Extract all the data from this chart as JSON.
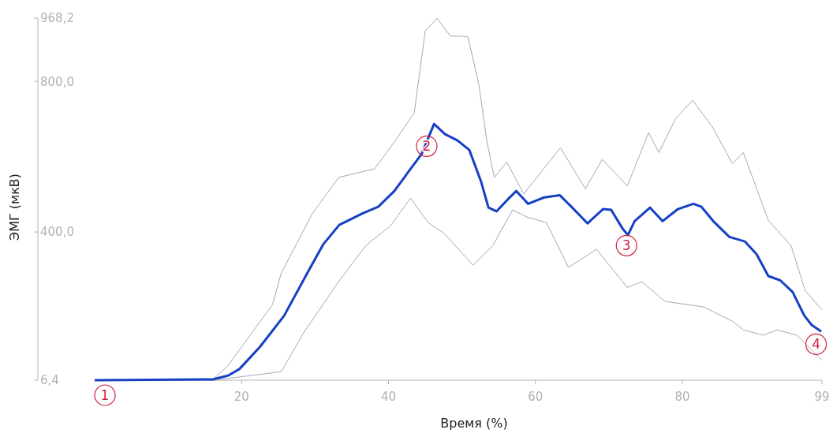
{
  "chart_data": {
    "type": "line",
    "xlabel": "Время (%)",
    "ylabel": "ЭМГ (мкВ)",
    "xlim": [
      0,
      99
    ],
    "xticks": [
      20,
      40,
      60,
      80,
      99
    ],
    "ylim": [
      6.4,
      968.2
    ],
    "yticks": [
      {
        "value": 6.4,
        "label": "6,4"
      },
      {
        "value": 400,
        "label": "400,0"
      },
      {
        "value": 800,
        "label": "800,0"
      },
      {
        "value": 968.2,
        "label": "968,2"
      }
    ],
    "grid": false,
    "marker": "none",
    "line_style": "solid",
    "series": [
      {
        "color": "#a3a6bb",
        "x": [
          0,
          16.1,
          18.1,
          24.2,
          25.4,
          29.6,
          33.2,
          38.1,
          40.3,
          43.5,
          45.0,
          46.6,
          48.4,
          50.8,
          52.3,
          53.4,
          54.4,
          56.1,
          58.4,
          63.4,
          66.8,
          69.1,
          72.5,
          75.4,
          76.8,
          79.1,
          81.4,
          84.1,
          86.8,
          88.3,
          91.7,
          94.8,
          96.7,
          99.0
        ],
        "values": [
          6.4,
          8.5,
          44,
          207,
          291,
          448,
          545,
          568,
          626,
          716,
          934,
          968,
          921,
          919,
          792,
          641,
          545,
          586,
          501,
          624,
          515,
          593,
          522,
          664,
          611,
          702,
          750,
          679,
          582,
          611,
          431,
          364,
          245,
          193
        ]
      },
      {
        "color": "#a3a6bb",
        "x": [
          0,
          16.1,
          18.9,
          25.4,
          28.5,
          33.2,
          36.9,
          40.3,
          43.0,
          45.4,
          47.6,
          51.5,
          54.2,
          56.9,
          58.8,
          61.5,
          64.5,
          68.3,
          72.5,
          74.5,
          77.6,
          82.9,
          86.8,
          88.3,
          91.0,
          92.9,
          95.6,
          99.0
        ],
        "values": [
          6.4,
          6.4,
          13,
          29,
          134,
          268,
          364,
          417,
          490,
          425,
          396,
          312,
          364,
          459,
          440,
          425,
          306,
          354,
          253,
          268,
          216,
          201,
          163,
          140,
          126,
          140,
          126,
          59
        ]
      },
      {
        "color": "#1540c4",
        "x": [
          0,
          16.1,
          18.2,
          19.7,
          22.5,
          25.8,
          29.0,
          31.1,
          33.3,
          36.5,
          38.6,
          40.8,
          42.9,
          44.5,
          46.2,
          47.7,
          49.4,
          51.0,
          52.6,
          53.6,
          54.7,
          56.3,
          57.4,
          59.0,
          61.2,
          63.3,
          64.9,
          67.1,
          69.2,
          70.3,
          71.9,
          72.6,
          73.5,
          75.6,
          77.3,
          79.4,
          81.5,
          82.6,
          84.2,
          86.4,
          88.5,
          90.1,
          91.7,
          93.3,
          95.0,
          96.6,
          97.6,
          98.9
        ],
        "values": [
          6.4,
          8.5,
          19,
          36,
          95,
          178,
          293,
          367,
          419,
          450,
          467,
          509,
          565,
          607,
          687,
          660,
          643,
          618,
          534,
          465,
          455,
          488,
          509,
          475,
          492,
          498,
          467,
          423,
          461,
          459,
          408,
          392,
          429,
          465,
          429,
          461,
          475,
          467,
          429,
          387,
          375,
          341,
          283,
          272,
          241,
          178,
          153,
          136
        ]
      }
    ],
    "annotations": [
      {
        "text": "1",
        "x": 1.4,
        "y": 6.4
      },
      {
        "text": "2",
        "x": 45.2,
        "y": 628
      },
      {
        "text": "3",
        "x": 72.4,
        "y": 364
      },
      {
        "text": "4",
        "x": 98.2,
        "y": 102
      }
    ]
  }
}
